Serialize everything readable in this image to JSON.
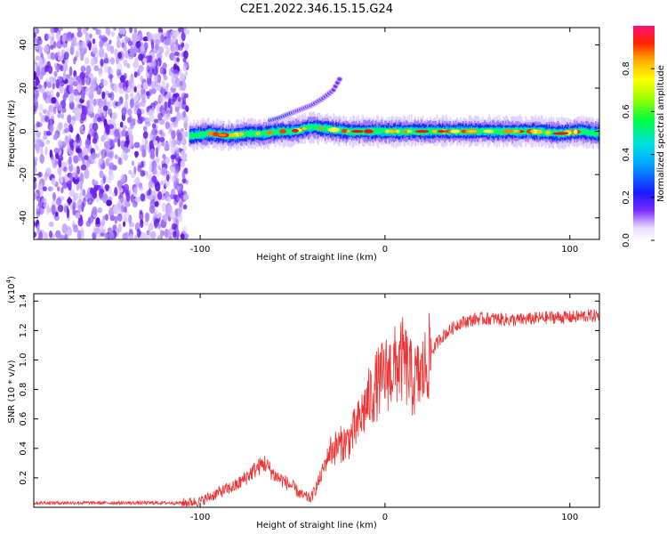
{
  "title": "C2E1.2022.346.15.15.G24",
  "chart_data": [
    {
      "type": "heatmap",
      "xlabel": "Height of straight line (km)",
      "ylabel": "Frequency (Hz)",
      "xlim": [
        -190,
        116
      ],
      "ylim": [
        -50,
        48
      ],
      "xticks": [
        "-100",
        "0",
        "100"
      ],
      "xtick_values": [
        -100,
        0,
        100
      ],
      "yticks": [
        "-40",
        "-20",
        "0",
        "20",
        "40"
      ],
      "ytick_values": [
        -40,
        -20,
        0,
        20,
        40
      ],
      "colorbar": {
        "label": "Normalized spectral amplitude",
        "range": [
          0,
          1
        ],
        "ticks": [
          "0.0",
          "0.2",
          "0.4",
          "0.6",
          "0.8"
        ],
        "tick_values": [
          0,
          0.2,
          0.4,
          0.6,
          0.8
        ]
      },
      "main_trace": {
        "x": [
          -105,
          -95,
          -85,
          -75,
          -65,
          -58,
          -50,
          -40,
          -30,
          -20,
          -10,
          0,
          20,
          40,
          60,
          80,
          95,
          105,
          116
        ],
        "y": [
          -2,
          -1,
          -2,
          -1,
          -1,
          0,
          0,
          2,
          1,
          0,
          0,
          0,
          0,
          0,
          0,
          0,
          -1,
          0,
          -1
        ]
      },
      "upper_branch": {
        "x": [
          -62,
          -58,
          -52,
          -46,
          -40,
          -34,
          -28,
          -24
        ],
        "y": [
          5,
          6,
          8,
          10,
          12,
          15,
          19,
          25
        ]
      }
    },
    {
      "type": "line",
      "xlabel": "Height of straight line (km)",
      "ylabel": "SNR (10 * v/v)",
      "multiplier": "(x10",
      "multiplier_exp": "4",
      "multiplier_close": ")",
      "xlim": [
        -190,
        116
      ],
      "ylim": [
        0,
        1.45
      ],
      "xticks": [
        "-100",
        "0",
        "100"
      ],
      "xtick_values": [
        -100,
        0,
        100
      ],
      "yticks": [
        "0.2",
        "0.4",
        "0.6",
        "0.8",
        "1.0",
        "1.2",
        "1.4"
      ],
      "ytick_values": [
        0.2,
        0.4,
        0.6,
        0.8,
        1.0,
        1.2,
        1.4
      ],
      "line_color": "#ee3333",
      "series": [
        {
          "x": [
            -190,
            -110,
            -100,
            -90,
            -80,
            -70,
            -65,
            -60,
            -55,
            -50,
            -45,
            -40,
            -35,
            -30,
            -25,
            -20,
            -15,
            -10,
            -5,
            0,
            5,
            10,
            15,
            20,
            25,
            30,
            35,
            40,
            50,
            60,
            70,
            80,
            90,
            100,
            110,
            116
          ],
          "values": [
            0.03,
            0.03,
            0.04,
            0.1,
            0.15,
            0.26,
            0.3,
            0.22,
            0.18,
            0.14,
            0.08,
            0.06,
            0.2,
            0.38,
            0.42,
            0.45,
            0.55,
            0.7,
            0.82,
            0.9,
            0.95,
            1.0,
            0.85,
            0.9,
            1.05,
            1.15,
            1.2,
            1.25,
            1.28,
            1.28,
            1.27,
            1.28,
            1.29,
            1.29,
            1.3,
            1.3
          ]
        }
      ]
    }
  ]
}
